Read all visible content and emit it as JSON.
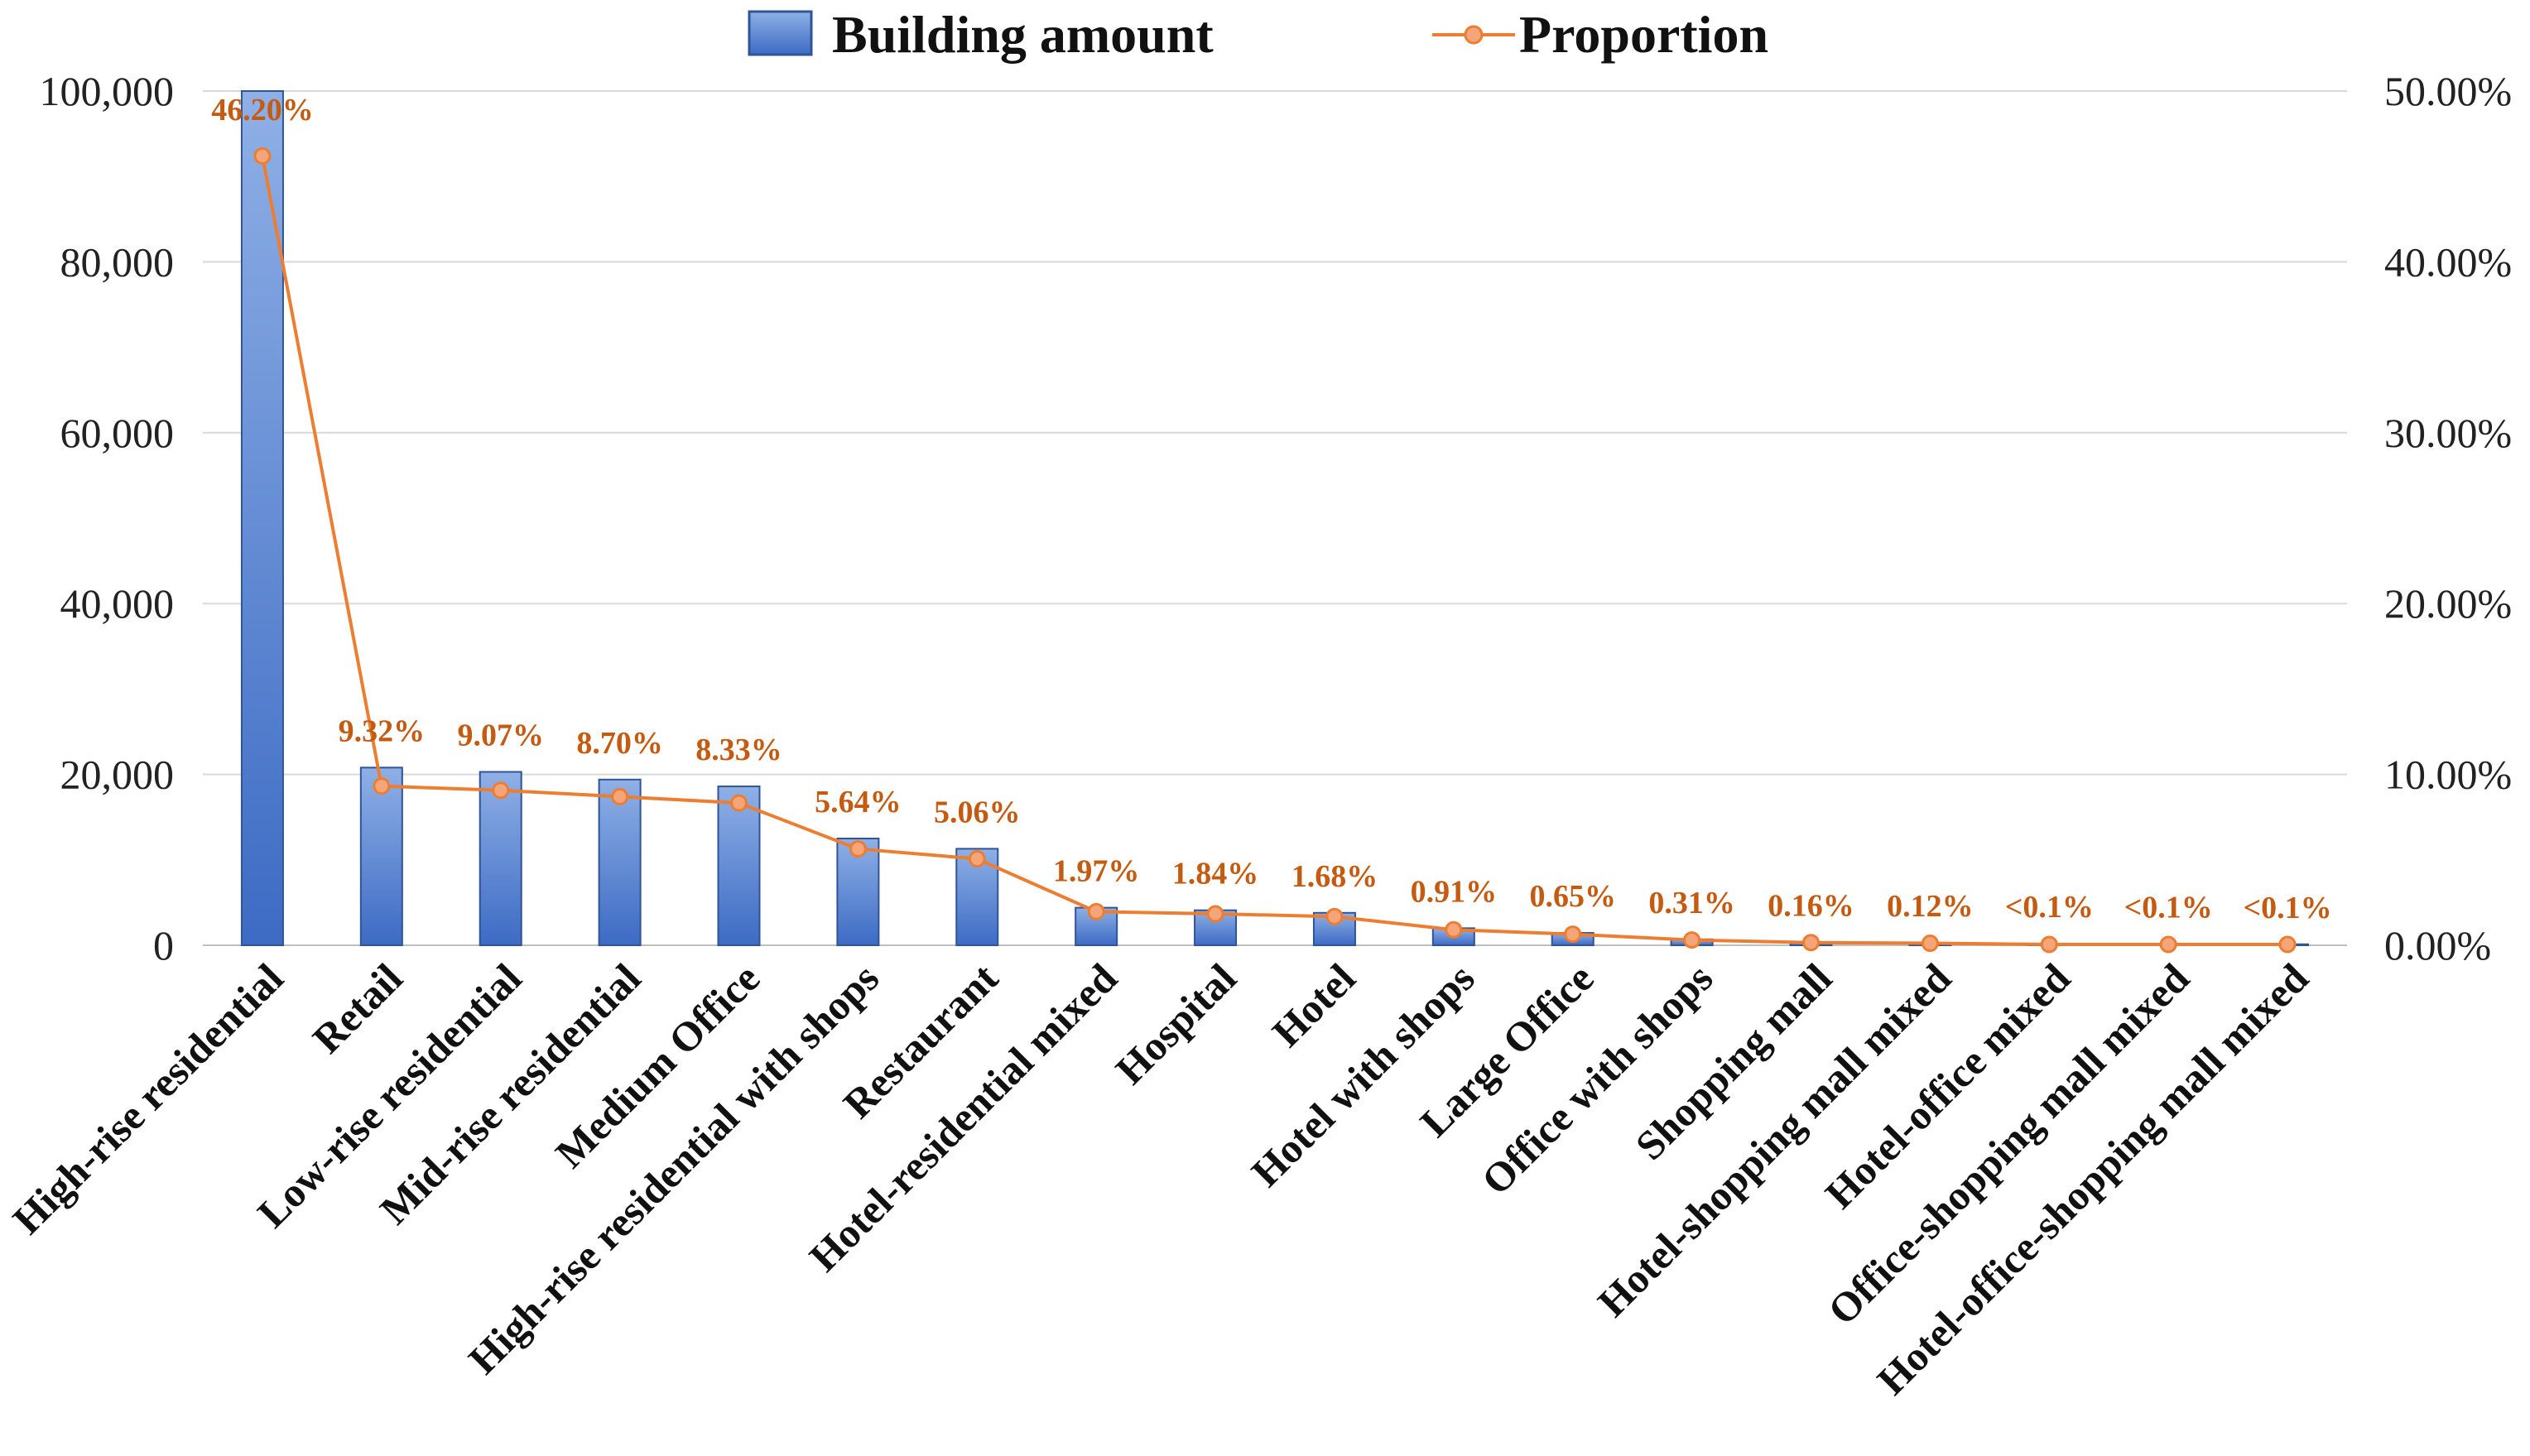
{
  "chart_data": {
    "type": "bar",
    "categories": [
      "High-rise residential",
      "Retail",
      "Low-rise residential",
      "Mid-rise residential",
      "Medium Office",
      "High-rise residential with shops",
      "Restaurant",
      "Hotel-residential mixed",
      "Hospital",
      "Hotel",
      "Hotel with shops",
      "Large Office",
      "Office with shops",
      "Shopping mall",
      "Hotel-shopping mall mixed",
      "Hotel-office mixed",
      "Office-shopping mall mixed",
      "Hotel-office-shopping mall mixed"
    ],
    "series": [
      {
        "name": "Building amount",
        "kind": "bar",
        "axis": "left",
        "values": [
          100000,
          20800,
          20300,
          19400,
          18600,
          12500,
          11300,
          4400,
          4100,
          3800,
          2000,
          1450,
          700,
          350,
          270,
          200,
          150,
          120
        ]
      },
      {
        "name": "Proportion",
        "kind": "line",
        "axis": "right",
        "values": [
          46.2,
          9.32,
          9.07,
          8.7,
          8.33,
          5.64,
          5.06,
          1.97,
          1.84,
          1.68,
          0.91,
          0.65,
          0.31,
          0.16,
          0.12,
          0.05,
          0.05,
          0.05
        ],
        "labels": [
          "46.20%",
          "9.32%",
          "9.07%",
          "8.70%",
          "8.33%",
          "5.64%",
          "5.06%",
          "1.97%",
          "1.84%",
          "1.68%",
          "0.91%",
          "0.65%",
          "0.31%",
          "0.16%",
          "0.12%",
          "<0.1%",
          "<0.1%",
          "<0.1%"
        ]
      }
    ],
    "y_left": {
      "ylim": [
        0,
        100000
      ],
      "ticks": [
        0,
        20000,
        40000,
        60000,
        80000,
        100000
      ],
      "tick_labels": [
        "0",
        "20,000",
        "40,000",
        "60,000",
        "80,000",
        "100,000"
      ]
    },
    "y_right": {
      "ylim": [
        0,
        50
      ],
      "ticks": [
        0,
        10,
        20,
        30,
        40,
        50
      ],
      "tick_labels": [
        "0.00%",
        "10.00%",
        "20.00%",
        "30.00%",
        "40.00%",
        "50.00%"
      ]
    },
    "legend": {
      "position": "top-center",
      "entries": [
        "Building amount",
        "Proportion"
      ]
    },
    "grid": true,
    "title": "",
    "xlabel": "",
    "ylabel": ""
  },
  "colors": {
    "bar_top": "#8fb0e6",
    "bar_bottom": "#3d6bc4",
    "bar_edge": "#2f5597",
    "line": "#ed7d31",
    "marker_fill": "#f4a57a",
    "pct_label": "#c55a11",
    "grid": "#d9d9d9"
  }
}
